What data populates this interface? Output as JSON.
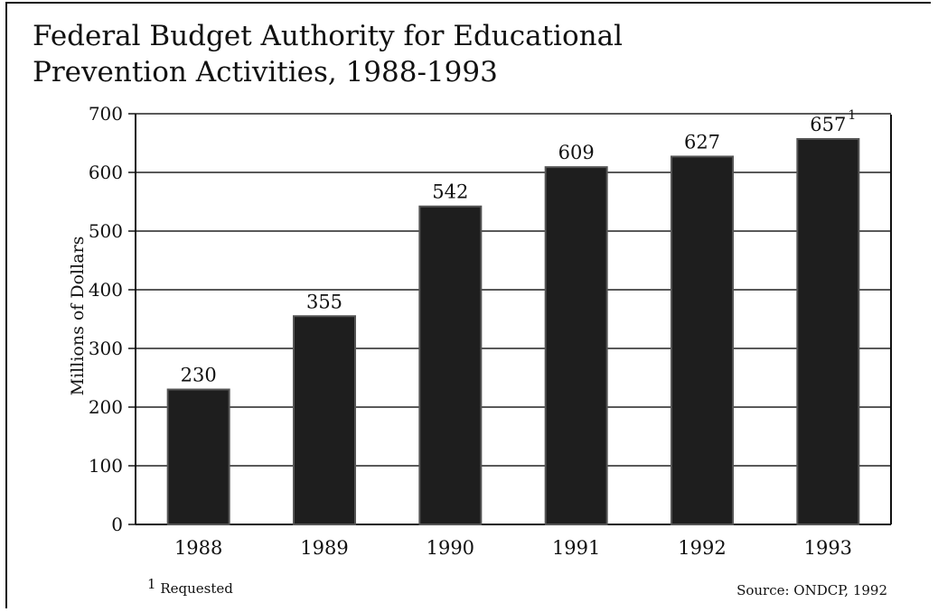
{
  "chart_data": {
    "type": "bar",
    "title_lines": [
      "Federal Budget Authority for Educational",
      "Prevention Activities, 1988-1993"
    ],
    "xlabel": "",
    "ylabel": "Millions of Dollars",
    "categories": [
      "1988",
      "1989",
      "1990",
      "1991",
      "1992",
      "1993"
    ],
    "values": [
      230,
      355,
      542,
      609,
      627,
      657
    ],
    "data_labels": [
      "230",
      "355",
      "542",
      "609",
      "627",
      "657"
    ],
    "ylim": [
      0,
      700
    ],
    "yticks": [
      0,
      100,
      200,
      300,
      400,
      500,
      600,
      700
    ],
    "ytick_labels": [
      "0",
      "100",
      "200",
      "300",
      "400",
      "500",
      "600",
      "700"
    ],
    "grid": true,
    "bar_color": "#1e1e1e",
    "annotations": [
      {
        "category": "1993",
        "marker": "1"
      }
    ],
    "footnote": {
      "marker": "1",
      "text": "Requested"
    },
    "source": "Source: ONDCP, 1992"
  }
}
